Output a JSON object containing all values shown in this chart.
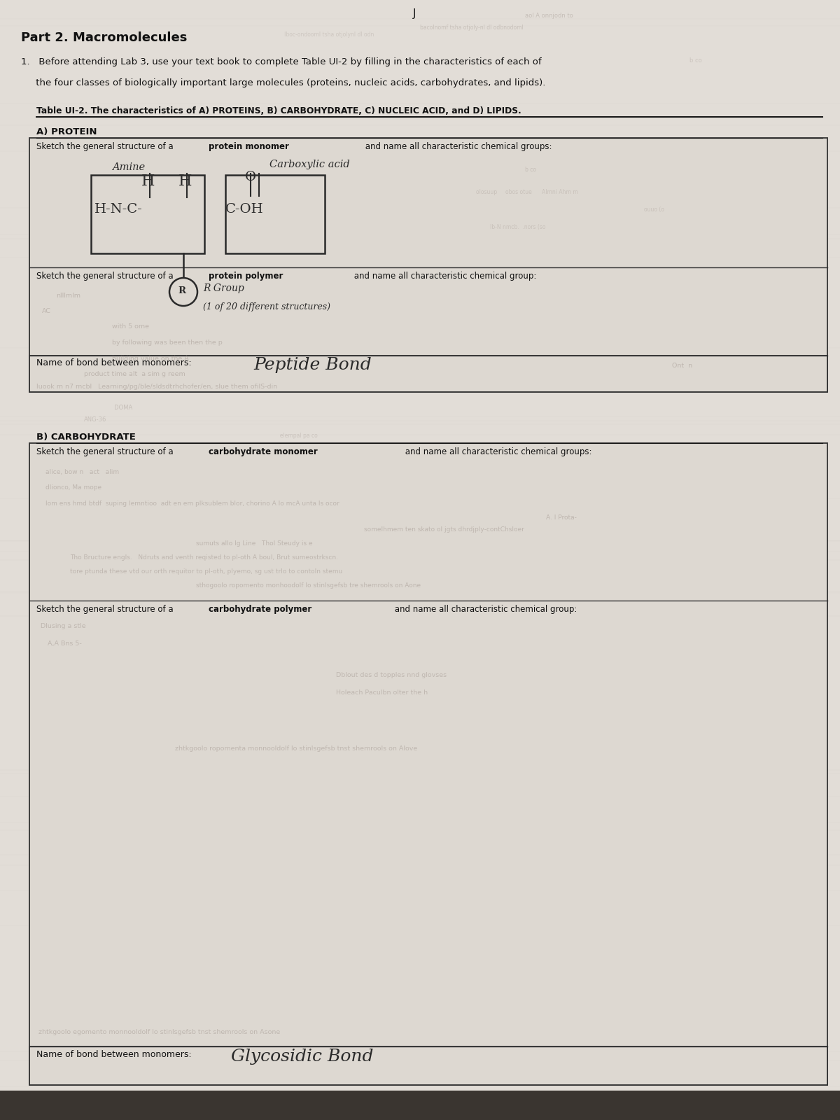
{
  "page_bg": "#e2ddd7",
  "section_bg": "#ddd8d1",
  "box_bg": "#d8d3cc",
  "printed_color": "#111111",
  "handwriting_color": "#2a2a2a",
  "faint_color": "#aaa099",
  "box_border": "#333333",
  "title": "Part 2. Macromolecules",
  "intro1": "1.   Before attending Lab 3, use your text book to complete Table UI-2 by filling in the characteristics of each of",
  "intro2": "     the four classes of biologically important large molecules (proteins, nucleic acids, carbohydrates, and lipids).",
  "table_title": "Table UI-2. The characteristics of A) PROTEINS, B) CARBOHYDRATE, C) NUCLEIC ACID, and D) LIPIDS.",
  "header_a": "A) PROTEIN",
  "row1a_pre": "Sketch the general structure of a ",
  "row1a_bold": "protein monomer",
  "row1a_post": " and name all characteristic chemical groups:",
  "amine": "Amine",
  "carboxylic": "Carboxylic acid",
  "row2a_pre": "Sketch the general structure of a ",
  "row2a_bold": "protein polymer",
  "row2a_post": " and name all characteristic chemical group:",
  "bond_a_label": "Name of bond between monomers:",
  "bond_a_value": "Peptide Bond",
  "header_b": "B) CARBOHYDRATE",
  "row1b_pre": "Sketch the general structure of a ",
  "row1b_bold": "carbohydrate monomer",
  "row1b_post": " and name all characteristic chemical groups:",
  "row2b_pre": "Sketch the general structure of a ",
  "row2b_bold": "carbohydrate polymer",
  "row2b_post": " and name all characteristic chemical group:",
  "bond_b_label": "Name of bond between monomers:",
  "bond_b_value": "Glycosidic Bond",
  "bottom_bar": "#3a3530"
}
